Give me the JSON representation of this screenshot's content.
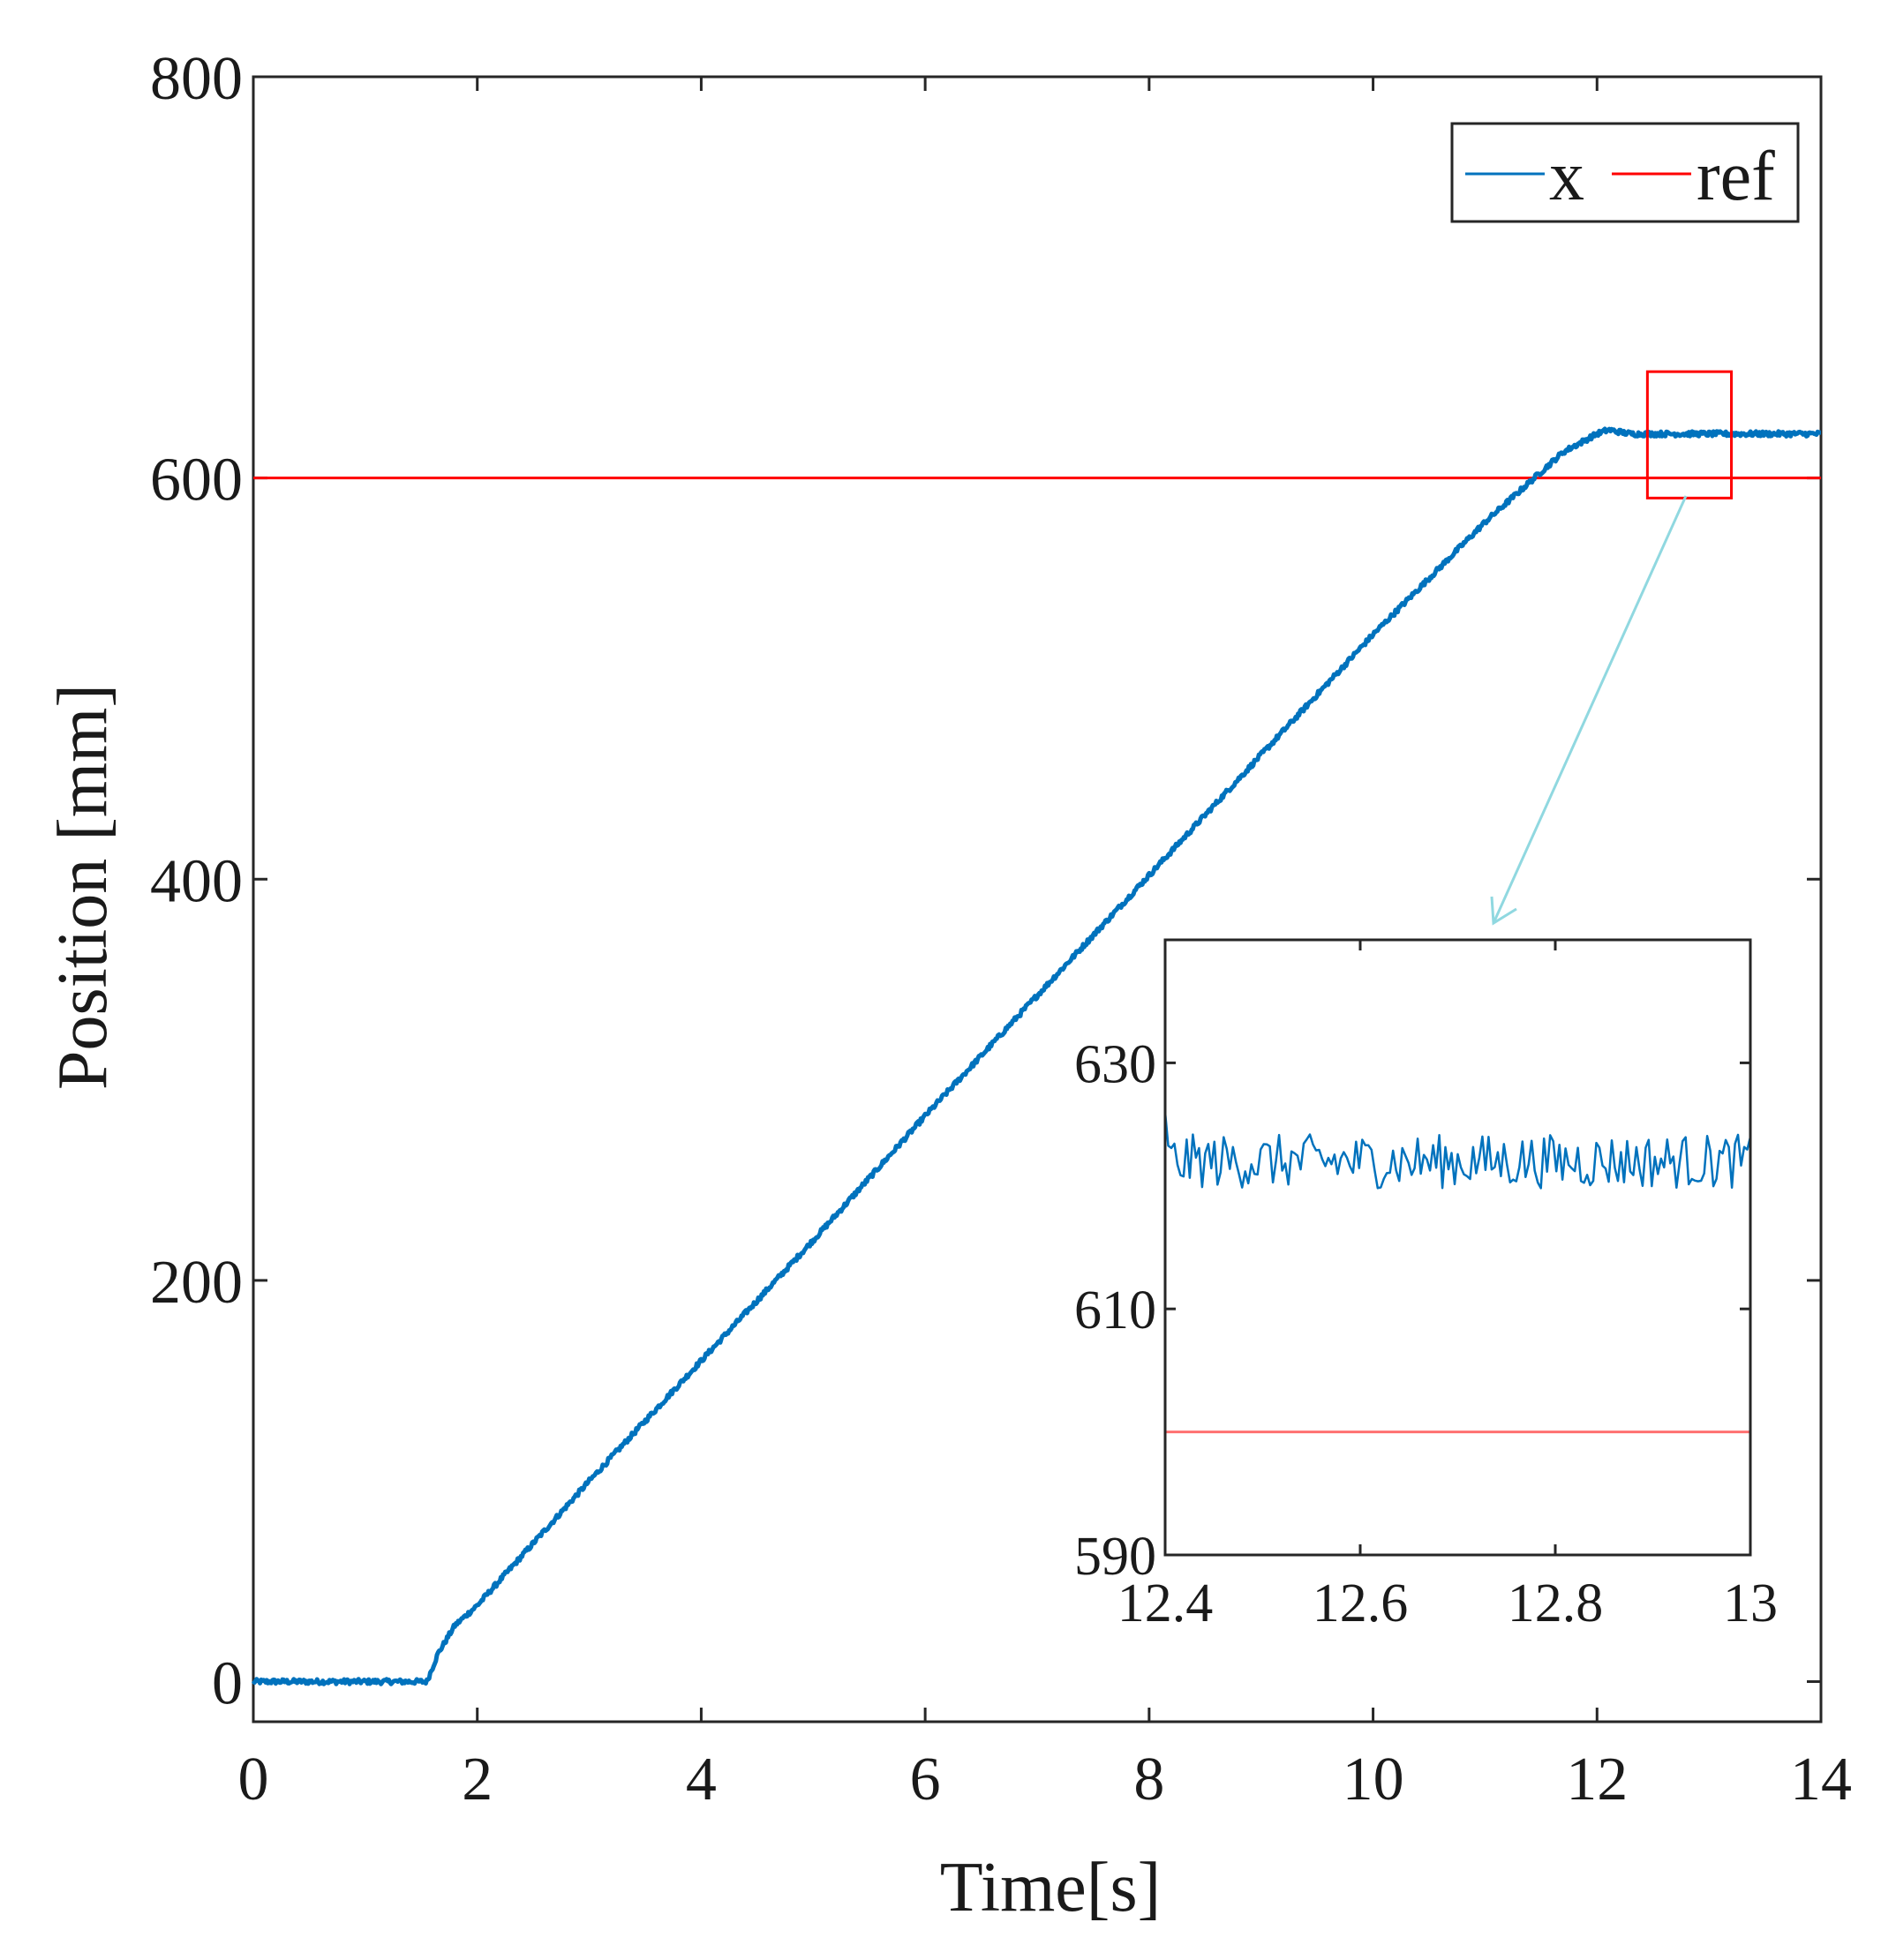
{
  "chart_data": {
    "type": "line",
    "xlabel": "Time[s]",
    "ylabel": "Position [mm]",
    "xlim": [
      0,
      14
    ],
    "ylim": [
      -20,
      800
    ],
    "xticks": [
      0,
      2,
      4,
      6,
      8,
      10,
      12,
      14
    ],
    "yticks": [
      0,
      200,
      400,
      600,
      800
    ],
    "grid": false,
    "legend": {
      "position": "top-right",
      "entries": [
        {
          "label": "x",
          "color": "#0072bd"
        },
        {
          "label": "ref",
          "color": "#ff0000"
        }
      ]
    },
    "series": [
      {
        "name": "x",
        "color": "#0072bd",
        "x": [
          0,
          1.55,
          1.65,
          1.8,
          2.0,
          3.0,
          4.0,
          5.0,
          6.0,
          7.0,
          8.0,
          9.0,
          10.0,
          11.0,
          11.7,
          12.0,
          12.1,
          12.3,
          12.6,
          13.0,
          13.5,
          14.0
        ],
        "y": [
          0,
          0,
          14,
          28,
          38,
          100,
          160,
          220,
          282,
          342,
          402,
          462,
          522,
          578,
          613,
          622,
          624,
          622,
          622,
          622,
          622,
          622
        ],
        "noise_amplitude": 2.5
      },
      {
        "name": "ref",
        "color": "#ff0000",
        "x": [
          0,
          14
        ],
        "y": [
          600,
          600
        ]
      }
    ],
    "highlight_box": {
      "x": [
        12.45,
        13.2
      ],
      "y": [
        590,
        653
      ]
    },
    "inset": {
      "xlim": [
        12.4,
        13.0
      ],
      "ylim": [
        590,
        640
      ],
      "xticks": [
        12.4,
        12.6,
        12.8,
        13.0
      ],
      "xtick_labels": [
        "12.4",
        "12.6",
        "12.8",
        "13"
      ],
      "yticks": [
        590,
        610,
        630
      ],
      "series": [
        {
          "name": "x",
          "color": "#0072bd",
          "mean": 622,
          "noise_amplitude": 2.2,
          "start_value": 626
        },
        {
          "name": "ref",
          "color": "#ff7070",
          "value": 600
        }
      ]
    }
  }
}
